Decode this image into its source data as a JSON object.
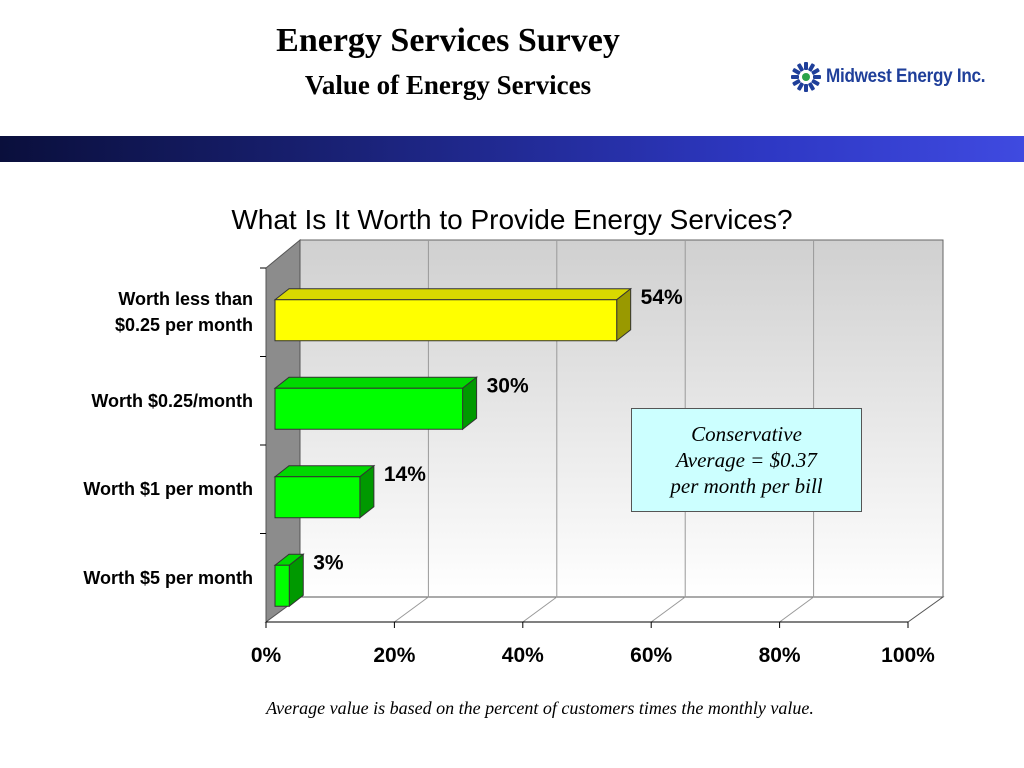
{
  "header": {
    "title": "Energy Services Survey",
    "subtitle": "Value of Energy Services",
    "logo_text": "Midwest Energy Inc."
  },
  "note": {
    "line1": "Conservative",
    "line2": "Average = $0.37",
    "line3": "per month per bill"
  },
  "footnote": "Average value is based on the percent of customers times the monthly value.",
  "colors": {
    "highlight_bar": "#ffff00",
    "bar": "#00ff00",
    "note_fill": "#ccffff",
    "band_dark": "#0a0f3c",
    "band_light": "#3f4ae0"
  },
  "chart_data": {
    "type": "bar",
    "orientation": "horizontal",
    "title": "What Is It Worth to Provide Energy Services?",
    "categories": [
      [
        "Worth less than",
        "$0.25 per month"
      ],
      [
        "Worth $0.25/month"
      ],
      [
        "Worth $1 per month"
      ],
      [
        "Worth $5 per month"
      ]
    ],
    "values": [
      54,
      30,
      14,
      3
    ],
    "value_labels": [
      "54%",
      "30%",
      "14%",
      "3%"
    ],
    "xlim": [
      0,
      100
    ],
    "xticks": [
      0,
      20,
      40,
      60,
      80,
      100
    ],
    "xtick_labels": [
      "0%",
      "20%",
      "40%",
      "60%",
      "80%",
      "100%"
    ],
    "grid": true,
    "legend": "none"
  }
}
